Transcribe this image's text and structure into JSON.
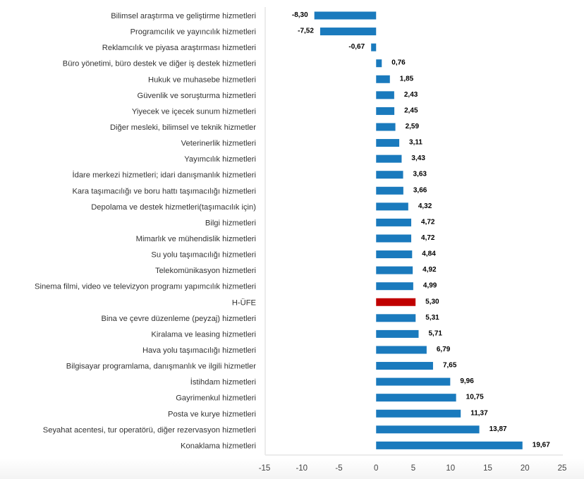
{
  "chart_data": {
    "type": "bar",
    "orientation": "horizontal",
    "title": "",
    "xlabel": "",
    "ylabel": "",
    "xlim": [
      -15,
      25
    ],
    "xticks": [
      -15,
      -10,
      -5,
      0,
      5,
      10,
      15,
      20,
      25
    ],
    "xtick_labels": [
      "-15",
      "-10",
      "-5",
      "0",
      "5",
      "10",
      "15",
      "20",
      "25"
    ],
    "grid": false,
    "legend": "none",
    "colors": {
      "default": "#1a7abd",
      "highlight": "#c00000"
    },
    "highlight_category": "H-ÜFE",
    "categories": [
      "Bilimsel araştırma ve geliştirme hizmetleri",
      "Programcılık ve yayıncılık hizmetleri",
      "Reklamcılık ve piyasa araştırması hizmetleri",
      "Büro yönetimi, büro destek ve diğer iş destek hizmetleri",
      "Hukuk ve muhasebe hizmetleri",
      "Güvenlik ve soruşturma hizmetleri",
      "Yiyecek ve içecek sunum hizmetleri",
      "Diğer mesleki, bilimsel ve teknik hizmetler",
      "Veterinerlik hizmetleri",
      "Yayımcılık hizmetleri",
      "İdare merkezi hizmetleri; idari danışmanlık hizmetleri",
      "Kara taşımacılığı ve boru hattı taşımacılığı hizmetleri",
      "Depolama ve destek hizmetleri(taşımacılık için)",
      "Bilgi hizmetleri",
      "Mimarlık ve mühendislik hizmetleri",
      "Su yolu taşımacılığı hizmetleri",
      "Telekomünikasyon hizmetleri",
      "Sinema filmi, video ve televizyon programı yapımcılık hizmetleri",
      "H-ÜFE",
      "Bina ve çevre düzenleme (peyzaj) hizmetleri",
      "Kiralama ve leasing hizmetleri",
      "Hava yolu taşımacılığı hizmetleri",
      "Bilgisayar programlama, danışmanlık ve ilgili hizmetler",
      "İstihdam hizmetleri",
      "Gayrimenkul hizmetleri",
      "Posta ve kurye hizmetleri",
      "Seyahat acentesi, tur operatörü, diğer rezervasyon hizmetleri",
      "Konaklama hizmetleri"
    ],
    "values": [
      -8.3,
      -7.52,
      -0.67,
      0.76,
      1.85,
      2.43,
      2.45,
      2.59,
      3.11,
      3.43,
      3.63,
      3.66,
      4.32,
      4.72,
      4.72,
      4.84,
      4.92,
      4.99,
      5.3,
      5.31,
      5.71,
      6.79,
      7.65,
      9.96,
      10.75,
      11.37,
      13.87,
      19.67
    ],
    "value_labels": [
      "-8,30",
      "-7,52",
      "-0,67",
      "0,76",
      "1,85",
      "2,43",
      "2,45",
      "2,59",
      "3,11",
      "3,43",
      "3,63",
      "3,66",
      "4,32",
      "4,72",
      "4,72",
      "4,84",
      "4,92",
      "4,99",
      "5,30",
      "5,31",
      "5,71",
      "6,79",
      "7,65",
      "9,96",
      "10,75",
      "11,37",
      "13,87",
      "19,67"
    ]
  }
}
